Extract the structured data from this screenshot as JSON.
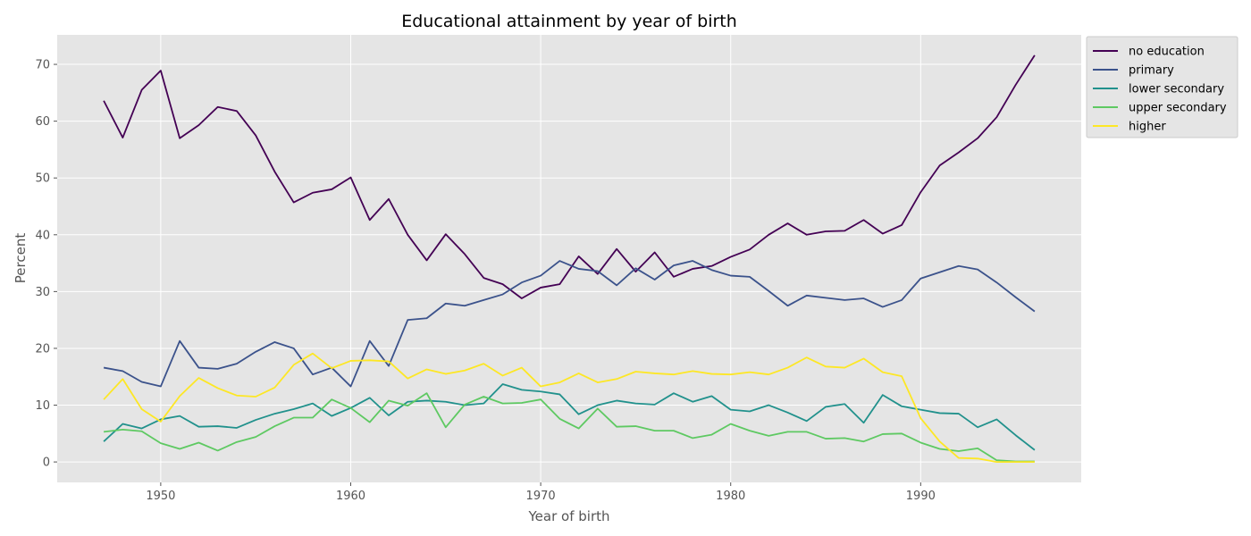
{
  "chart_data": {
    "type": "line",
    "title": "Educational attainment by year of birth",
    "xlabel": "Year of birth",
    "ylabel": "Percent",
    "xlim": [
      1944.55,
      1998.45
    ],
    "ylim": [
      -3.6,
      75.2
    ],
    "xticks": [
      1950,
      1960,
      1970,
      1980,
      1990
    ],
    "yticks": [
      0,
      10,
      20,
      30,
      40,
      50,
      60,
      70
    ],
    "grid": true,
    "legend_position": "outside-top-right",
    "x": [
      1947,
      1948,
      1949,
      1950,
      1951,
      1952,
      1953,
      1954,
      1955,
      1956,
      1957,
      1958,
      1959,
      1960,
      1961,
      1962,
      1963,
      1964,
      1965,
      1966,
      1967,
      1968,
      1969,
      1970,
      1971,
      1972,
      1973,
      1974,
      1975,
      1976,
      1977,
      1978,
      1979,
      1980,
      1981,
      1982,
      1983,
      1984,
      1985,
      1986,
      1987,
      1988,
      1989,
      1990,
      1991,
      1992,
      1993,
      1994,
      1995,
      1996
    ],
    "series": [
      {
        "name": "no education",
        "color": "#440154",
        "values": [
          63.6,
          57.1,
          65.5,
          68.9,
          57.0,
          59.3,
          62.5,
          61.8,
          57.5,
          51.1,
          45.7,
          47.4,
          48.0,
          50.1,
          42.6,
          46.3,
          40.0,
          35.5,
          40.1,
          36.6,
          32.4,
          31.3,
          28.8,
          30.7,
          31.3,
          36.2,
          33.1,
          37.5,
          33.5,
          36.9,
          32.6,
          34.0,
          34.5,
          36.1,
          37.4,
          40.0,
          42.0,
          40.0,
          40.6,
          40.7,
          42.6,
          40.2,
          41.7,
          47.5,
          52.2,
          54.5,
          57.0,
          60.7,
          66.4,
          71.6
        ]
      },
      {
        "name": "primary",
        "color": "#3b528b",
        "values": [
          16.6,
          16.0,
          14.1,
          13.3,
          21.3,
          16.6,
          16.4,
          17.3,
          19.4,
          21.1,
          20.0,
          15.4,
          16.6,
          13.3,
          21.3,
          16.9,
          25.0,
          25.3,
          27.9,
          27.5,
          28.5,
          29.5,
          31.6,
          32.8,
          35.4,
          34.0,
          33.6,
          31.1,
          34.1,
          32.1,
          34.6,
          35.4,
          33.8,
          32.8,
          32.6,
          30.1,
          27.5,
          29.3,
          28.9,
          28.5,
          28.8,
          27.3,
          28.5,
          32.3,
          33.4,
          34.5,
          33.9,
          31.6,
          29.0,
          26.5
        ]
      },
      {
        "name": "lower secondary",
        "color": "#21918c",
        "values": [
          3.6,
          6.7,
          5.9,
          7.5,
          8.1,
          6.2,
          6.3,
          6.0,
          7.4,
          8.5,
          9.3,
          10.3,
          8.1,
          9.5,
          11.3,
          8.2,
          10.6,
          10.8,
          10.6,
          10.0,
          10.3,
          13.7,
          12.7,
          12.4,
          11.9,
          8.4,
          10.0,
          10.8,
          10.3,
          10.1,
          12.1,
          10.6,
          11.6,
          9.2,
          8.9,
          10.0,
          8.7,
          7.2,
          9.7,
          10.2,
          6.9,
          11.8,
          9.8,
          9.2,
          8.6,
          8.5,
          6.1,
          7.5,
          4.7,
          2.1
        ]
      },
      {
        "name": "upper secondary",
        "color": "#5ec962",
        "values": [
          5.3,
          5.7,
          5.4,
          3.3,
          2.3,
          3.4,
          2.0,
          3.5,
          4.4,
          6.3,
          7.8,
          7.8,
          11.0,
          9.5,
          7.0,
          10.8,
          9.9,
          12.1,
          6.1,
          10.1,
          11.5,
          10.3,
          10.4,
          11.0,
          7.6,
          5.9,
          9.4,
          6.2,
          6.3,
          5.5,
          5.5,
          4.2,
          4.8,
          6.7,
          5.5,
          4.6,
          5.3,
          5.3,
          4.1,
          4.2,
          3.6,
          4.9,
          5.0,
          3.4,
          2.3,
          1.9,
          2.4,
          0.3,
          0.1,
          0.1
        ]
      },
      {
        "name": "higher",
        "color": "#fde725",
        "values": [
          11.0,
          14.6,
          9.3,
          7.1,
          11.6,
          14.8,
          13.0,
          11.7,
          11.5,
          13.1,
          17.1,
          19.1,
          16.5,
          17.8,
          17.9,
          17.7,
          14.7,
          16.3,
          15.5,
          16.1,
          17.3,
          15.2,
          16.6,
          13.3,
          14.0,
          15.6,
          14.0,
          14.6,
          15.9,
          15.6,
          15.4,
          16.0,
          15.5,
          15.4,
          15.8,
          15.4,
          16.6,
          18.4,
          16.8,
          16.6,
          18.2,
          15.8,
          15.1,
          7.7,
          3.6,
          0.7,
          0.6,
          0.0,
          0.0,
          0.0
        ]
      }
    ]
  }
}
